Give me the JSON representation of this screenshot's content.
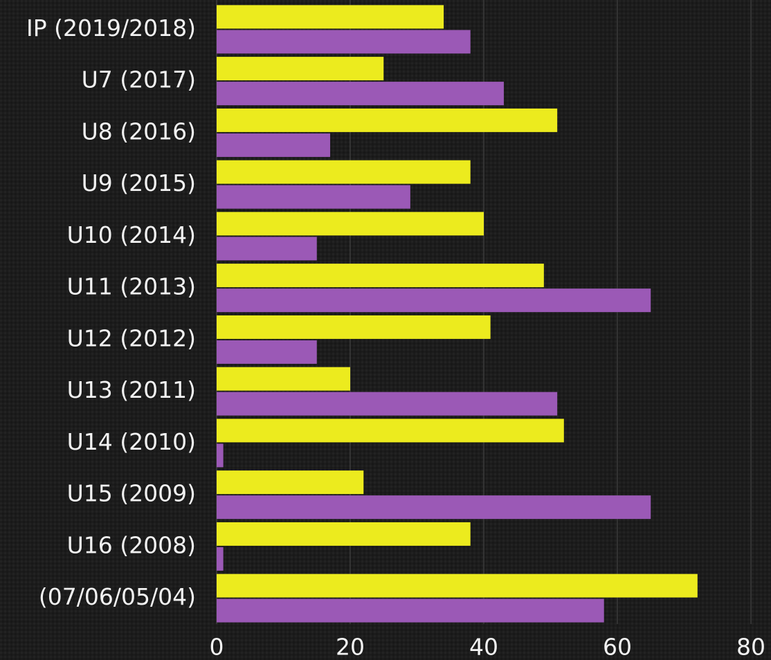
{
  "chart_data": {
    "type": "bar",
    "orientation": "horizontal",
    "categories": [
      "IP (2019/2018)",
      "U7 (2017)",
      "U8 (2016)",
      "U9 (2015)",
      "U10 (2014)",
      "U11 (2013)",
      "U12 (2012)",
      "U13 (2011)",
      "U14 (2010)",
      "U15 (2009)",
      "U16 (2008)",
      "(07/06/05/04)"
    ],
    "series": [
      {
        "color": "#eceb1e",
        "values": [
          34,
          25,
          51,
          38,
          40,
          49,
          41,
          20,
          52,
          22,
          38,
          72
        ]
      },
      {
        "color": "#9b59b6",
        "values": [
          38,
          43,
          17,
          29,
          15,
          65,
          15,
          51,
          1,
          65,
          1,
          58
        ]
      }
    ],
    "xlim": [
      0,
      80
    ],
    "xticks": [
      0,
      20,
      40,
      60,
      80
    ],
    "grid": true
  }
}
